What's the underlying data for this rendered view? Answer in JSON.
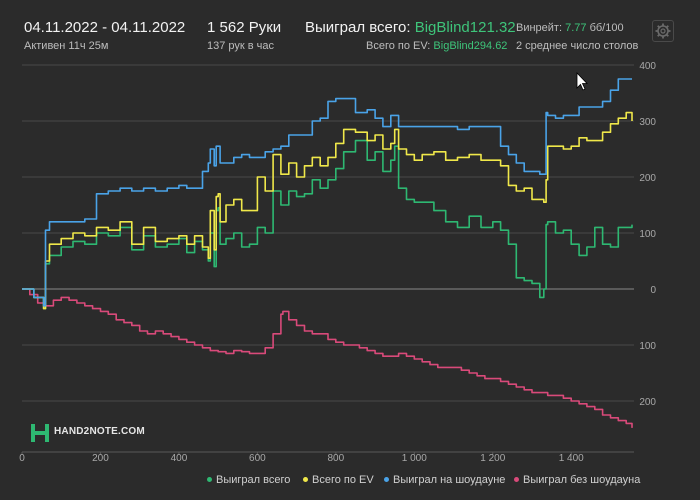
{
  "header": {
    "date_range": "04.11.2022 - 04.11.2022",
    "active": "Активен 11ч 25м",
    "hands": "1 562 Руки",
    "hands_per_hour": "137 рук в час",
    "won_total_label": "Выиграл всего:",
    "won_total_value": "BigBlind121.32",
    "ev_total_label": "Всего по EV:",
    "ev_total_value": "BigBlind294.62",
    "winrate_label": "Винрейт:",
    "winrate_value": "7.77",
    "winrate_per": "бб/100",
    "avg_tables": "2 среднее число столов"
  },
  "logo_text": "HAND2NOTE.COM",
  "colors": {
    "won_total": "#2eb872",
    "ev": "#f0e84a",
    "showdown": "#4aa3e8",
    "non_showdown": "#d94a7a",
    "grid": "#4a4a4a",
    "background": "#2b2b2b"
  },
  "chart_data": {
    "type": "line",
    "xlim": [
      0,
      1560
    ],
    "ylim": [
      -250,
      400
    ],
    "x_ticks": [
      0,
      200,
      400,
      600,
      800,
      1000,
      1200,
      1400
    ],
    "x_tick_labels": [
      "0",
      "200",
      "400",
      "600",
      "800",
      "1 000",
      "1 200",
      "1 400"
    ],
    "y_ticks": [
      400,
      300,
      200,
      100,
      0,
      -100,
      -200
    ],
    "y_tick_labels": [
      "400",
      "300",
      "200",
      "100",
      "0",
      "100",
      "200"
    ],
    "grid": true,
    "legend_position": "bottom-right",
    "series": [
      {
        "name": "Выиграл всего",
        "color_key": "won_total",
        "x": [
          0,
          30,
          55,
          60,
          70,
          100,
          130,
          160,
          190,
          220,
          250,
          280,
          310,
          340,
          370,
          400,
          420,
          440,
          460,
          475,
          480,
          490,
          495,
          500,
          505,
          520,
          540,
          560,
          580,
          600,
          620,
          640,
          660,
          680,
          700,
          720,
          740,
          760,
          780,
          800,
          820,
          850,
          880,
          900,
          920,
          940,
          950,
          960,
          980,
          1000,
          1020,
          1050,
          1080,
          1110,
          1140,
          1170,
          1200,
          1220,
          1240,
          1260,
          1280,
          1300,
          1320,
          1330,
          1336,
          1340,
          1360,
          1380,
          1400,
          1420,
          1440,
          1460,
          1480,
          1500,
          1520,
          1540,
          1555
        ],
        "y": [
          0,
          -15,
          -35,
          45,
          60,
          75,
          85,
          80,
          100,
          95,
          110,
          70,
          95,
          75,
          80,
          90,
          65,
          85,
          70,
          50,
          100,
          40,
          140,
          145,
          80,
          90,
          100,
          75,
          80,
          110,
          100,
          175,
          150,
          175,
          165,
          170,
          195,
          180,
          195,
          215,
          245,
          265,
          230,
          245,
          210,
          230,
          255,
          180,
          160,
          155,
          155,
          140,
          120,
          110,
          130,
          110,
          120,
          105,
          80,
          20,
          15,
          10,
          -15,
          0,
          115,
          120,
          100,
          105,
          80,
          60,
          75,
          110,
          80,
          75,
          110,
          110,
          115
        ]
      },
      {
        "name": "Всего по EV",
        "color_key": "ev",
        "x": [
          0,
          30,
          55,
          60,
          70,
          100,
          130,
          160,
          190,
          220,
          250,
          280,
          310,
          340,
          370,
          400,
          420,
          440,
          460,
          475,
          480,
          490,
          495,
          500,
          505,
          520,
          540,
          560,
          580,
          600,
          620,
          640,
          660,
          680,
          700,
          720,
          740,
          760,
          780,
          800,
          820,
          850,
          880,
          900,
          920,
          940,
          950,
          960,
          980,
          1000,
          1020,
          1050,
          1080,
          1110,
          1140,
          1170,
          1200,
          1220,
          1240,
          1260,
          1280,
          1300,
          1320,
          1330,
          1336,
          1340,
          1360,
          1380,
          1400,
          1420,
          1440,
          1460,
          1480,
          1500,
          1520,
          1540,
          1555
        ],
        "y": [
          0,
          -15,
          -35,
          50,
          80,
          90,
          100,
          95,
          110,
          105,
          120,
          80,
          110,
          85,
          90,
          95,
          80,
          95,
          75,
          55,
          140,
          70,
          165,
          170,
          120,
          150,
          160,
          140,
          140,
          200,
          175,
          240,
          205,
          225,
          200,
          220,
          235,
          220,
          235,
          260,
          285,
          280,
          265,
          275,
          250,
          260,
          285,
          250,
          240,
          230,
          240,
          245,
          230,
          235,
          240,
          230,
          230,
          220,
          185,
          175,
          180,
          160,
          160,
          155,
          195,
          255,
          255,
          250,
          255,
          270,
          265,
          265,
          280,
          295,
          305,
          315,
          300
        ]
      },
      {
        "name": "Выиграл на шоудауне",
        "color_key": "showdown",
        "x": [
          0,
          30,
          55,
          60,
          70,
          100,
          130,
          160,
          190,
          220,
          250,
          280,
          310,
          340,
          370,
          400,
          420,
          440,
          460,
          475,
          480,
          490,
          495,
          500,
          505,
          520,
          540,
          560,
          580,
          600,
          620,
          640,
          660,
          680,
          700,
          720,
          740,
          760,
          780,
          800,
          820,
          850,
          880,
          900,
          920,
          940,
          950,
          960,
          980,
          1000,
          1020,
          1050,
          1080,
          1110,
          1140,
          1170,
          1200,
          1220,
          1240,
          1260,
          1280,
          1300,
          1320,
          1330,
          1336,
          1340,
          1360,
          1380,
          1400,
          1420,
          1440,
          1460,
          1480,
          1500,
          1520,
          1540,
          1555
        ],
        "y": [
          0,
          -15,
          -30,
          105,
          120,
          120,
          120,
          125,
          170,
          175,
          180,
          175,
          180,
          175,
          180,
          185,
          180,
          180,
          210,
          225,
          250,
          220,
          255,
          255,
          225,
          225,
          235,
          240,
          235,
          235,
          245,
          250,
          255,
          275,
          275,
          275,
          300,
          305,
          335,
          340,
          340,
          315,
          320,
          305,
          290,
          310,
          310,
          290,
          290,
          290,
          290,
          290,
          290,
          285,
          290,
          290,
          290,
          255,
          240,
          225,
          210,
          210,
          205,
          205,
          315,
          310,
          305,
          310,
          310,
          325,
          325,
          325,
          335,
          355,
          375,
          375,
          375
        ]
      },
      {
        "name": "Выиграл без шоудауна",
        "color_key": "non_showdown",
        "x": [
          0,
          20,
          40,
          60,
          80,
          100,
          120,
          140,
          160,
          180,
          200,
          220,
          240,
          260,
          280,
          300,
          320,
          340,
          360,
          380,
          400,
          420,
          440,
          460,
          480,
          500,
          520,
          540,
          560,
          580,
          600,
          620,
          640,
          660,
          665,
          680,
          700,
          720,
          740,
          760,
          780,
          800,
          820,
          840,
          860,
          880,
          900,
          920,
          940,
          960,
          980,
          1000,
          1020,
          1040,
          1060,
          1080,
          1100,
          1120,
          1140,
          1160,
          1180,
          1200,
          1220,
          1240,
          1260,
          1280,
          1300,
          1320,
          1340,
          1360,
          1380,
          1400,
          1420,
          1440,
          1460,
          1480,
          1500,
          1520,
          1540,
          1555
        ],
        "y": [
          0,
          -10,
          -25,
          -30,
          -20,
          -15,
          -20,
          -25,
          -30,
          -35,
          -40,
          -45,
          -55,
          -60,
          -65,
          -75,
          -80,
          -75,
          -80,
          -85,
          -90,
          -95,
          -100,
          -105,
          -110,
          -112,
          -115,
          -110,
          -112,
          -115,
          -115,
          -105,
          -80,
          -45,
          -40,
          -55,
          -65,
          -75,
          -80,
          -80,
          -90,
          -95,
          -100,
          -100,
          -105,
          -110,
          -115,
          -120,
          -120,
          -115,
          -120,
          -125,
          -130,
          -135,
          -140,
          -140,
          -140,
          -145,
          -150,
          -155,
          -160,
          -160,
          -165,
          -170,
          -175,
          -180,
          -185,
          -185,
          -190,
          -190,
          -195,
          -200,
          -205,
          -210,
          -215,
          -225,
          -230,
          -235,
          -240,
          -248
        ]
      }
    ]
  }
}
